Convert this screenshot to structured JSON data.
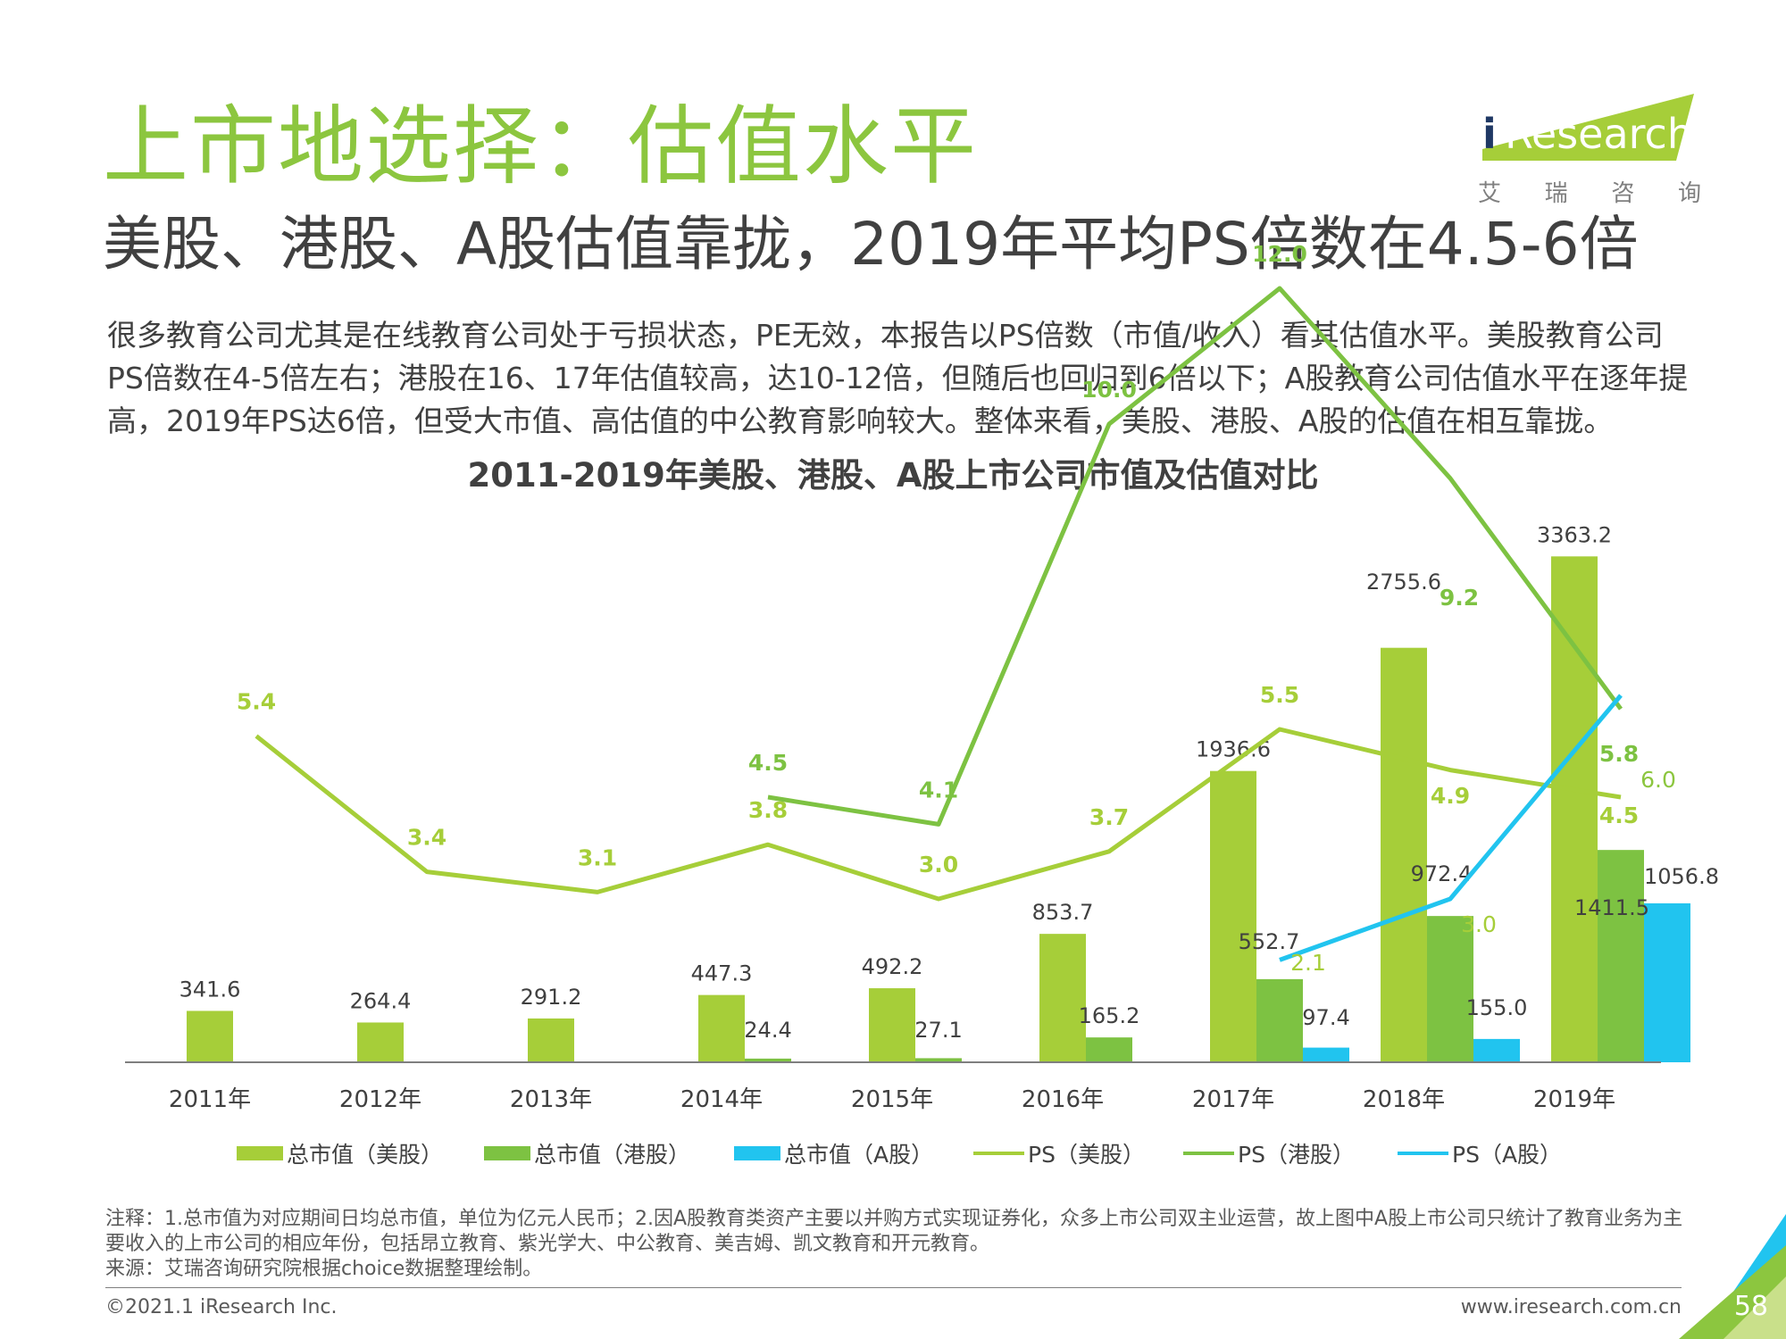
{
  "title": "上市地选择：估值水平",
  "subtitle": "美股、港股、A股估值靠拢，2019年平均PS倍数在4.5-6倍",
  "intro": "很多教育公司尤其是在线教育公司处于亏损状态，PE无效，本报告以PS倍数（市值/收入）看其估值水平。美股教育公司PS倍数在4-5倍左右；港股在16、17年估值较高，达10-12倍，但随后也回归到6倍以下；A股教育公司估值水平在逐年提高，2019年PS达6倍，但受大市值、高估值的中公教育影响较大。整体来看，美股、港股、A股的估值在相互靠拢。",
  "logo": {
    "i": "i",
    "brand": "Research",
    "sub": [
      "艾",
      "瑞",
      "咨",
      "询"
    ]
  },
  "note": "注释：1.总市值为对应期间日均总市值，单位为亿元人民币；2.因A股教育类资产主要以并购方式实现证券化，众多上市公司双主业运营，故上图中A股上市公司只统计了教育业务为主要收入的上市公司的相应年份，包括昂立教育、紫光学大、中公教育、美吉姆、凯文教育和开元教育。",
  "source": "来源：艾瑞咨询研究院根据choice数据整理绘制。",
  "copyright": "©2021.1 iResearch Inc.",
  "website": "www.iresearch.com.cn",
  "page_number": "58",
  "colors": {
    "us": "#a6ce39",
    "hk": "#7dc242",
    "a": "#21c4ef",
    "title_green": "#8cc63f"
  },
  "chart_data": {
    "type": "bar",
    "title": "2011-2019年美股、港股、A股上市公司市值及估值对比",
    "categories": [
      "2011年",
      "2012年",
      "2013年",
      "2014年",
      "2015年",
      "2016年",
      "2017年",
      "2018年",
      "2019年"
    ],
    "series": [
      {
        "name": "总市值（美股）",
        "type": "bar",
        "color": "#a6ce39",
        "values": [
          341.6,
          264.4,
          291.2,
          447.3,
          492.2,
          853.7,
          1936.6,
          2755.6,
          3363.2
        ],
        "labels": [
          "341.6",
          "264.4",
          "291.2",
          "447.3",
          "492.2",
          "853.7",
          "1936.6",
          "2755.6",
          "3363.2"
        ]
      },
      {
        "name": "总市值（港股）",
        "type": "bar",
        "color": "#7dc242",
        "values": [
          null,
          null,
          null,
          24.4,
          27.1,
          165.2,
          552.7,
          972.4,
          1411.5
        ],
        "labels": [
          null,
          null,
          null,
          "24.4",
          "27.1",
          "165.2",
          "552.7",
          "972.4",
          "1411.5"
        ]
      },
      {
        "name": "总市值（A股）",
        "type": "bar",
        "color": "#21c4ef",
        "values": [
          null,
          null,
          null,
          null,
          null,
          null,
          97.4,
          155.0,
          1056.8
        ],
        "labels": [
          null,
          null,
          null,
          null,
          null,
          null,
          "97.4",
          "155.0",
          "1056.8"
        ]
      },
      {
        "name": "PS（美股）",
        "type": "line",
        "color": "#a6ce39",
        "values": [
          5.4,
          3.4,
          3.1,
          3.8,
          3.0,
          3.7,
          5.5,
          4.9,
          4.5
        ],
        "labels": [
          "5.4",
          "3.4",
          "3.1",
          "3.8",
          "3.0",
          "3.7",
          "5.5",
          "4.9",
          "4.5"
        ]
      },
      {
        "name": "PS（港股）",
        "type": "line",
        "color": "#7dc242",
        "values": [
          null,
          null,
          null,
          4.5,
          4.1,
          10.0,
          12.0,
          9.2,
          5.8
        ],
        "labels": [
          null,
          null,
          null,
          "4.5",
          "4.1",
          "10.0",
          "12.0",
          "9.2",
          "5.8"
        ]
      },
      {
        "name": "PS（A股）",
        "type": "line",
        "color": "#21c4ef",
        "values": [
          null,
          null,
          null,
          null,
          null,
          null,
          2.1,
          3.0,
          6.0
        ],
        "labels": [
          null,
          null,
          null,
          null,
          null,
          null,
          "2.1",
          "3.0",
          "6.0"
        ]
      }
    ],
    "legend_position": "bottom",
    "grid": false
  }
}
